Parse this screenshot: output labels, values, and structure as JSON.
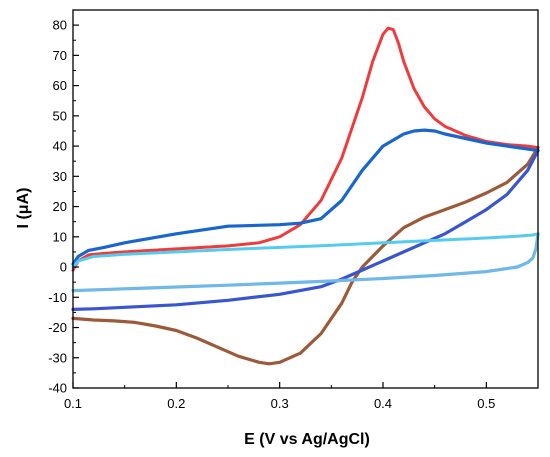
{
  "chart_data": {
    "type": "line",
    "xlabel": "E (V vs Ag/AgCl)",
    "ylabel": "I (μA)",
    "xlim": [
      0.1,
      0.55
    ],
    "ylim": [
      -40,
      85
    ],
    "xticks": [
      0.1,
      0.2,
      0.3,
      0.4,
      0.5
    ],
    "yticks": [
      -40,
      -30,
      -20,
      -10,
      0,
      10,
      20,
      30,
      40,
      50,
      60,
      70,
      80
    ],
    "grid": false,
    "legend": "none",
    "series": [
      {
        "color": "#ee3b3b",
        "style": "dotted",
        "x": [
          0.1,
          0.105,
          0.115,
          0.13,
          0.15,
          0.2,
          0.25,
          0.28,
          0.3,
          0.32,
          0.34,
          0.36,
          0.38,
          0.39,
          0.4,
          0.405,
          0.41,
          0.415,
          0.42,
          0.43,
          0.44,
          0.45,
          0.46,
          0.48,
          0.5,
          0.52,
          0.54,
          0.55
        ],
        "y": [
          -1,
          2,
          4,
          4.5,
          5,
          6,
          7,
          8,
          10,
          14,
          22,
          36,
          56,
          68,
          77,
          79,
          78.5,
          74,
          68,
          59,
          53,
          49,
          46.5,
          43.5,
          41.5,
          40.5,
          40,
          39.5
        ]
      },
      {
        "color": "#9b5a3a",
        "style": "solid",
        "x": [
          0.55,
          0.54,
          0.52,
          0.5,
          0.48,
          0.46,
          0.44,
          0.42,
          0.4,
          0.38,
          0.37,
          0.36,
          0.34,
          0.32,
          0.3,
          0.29,
          0.28,
          0.26,
          0.24,
          0.22,
          0.2,
          0.18,
          0.16,
          0.14,
          0.12,
          0.1
        ],
        "y": [
          39.5,
          34,
          28,
          24.5,
          21.5,
          19,
          16.5,
          13,
          7,
          0,
          -5,
          -12,
          -22,
          -28.5,
          -31.5,
          -32,
          -31.5,
          -29.5,
          -26.5,
          -23.5,
          -21,
          -19.5,
          -18.3,
          -17.8,
          -17.5,
          -17
        ]
      },
      {
        "color": "#1a66cc",
        "style": "solid",
        "x": [
          0.1,
          0.105,
          0.115,
          0.13,
          0.15,
          0.2,
          0.25,
          0.3,
          0.32,
          0.34,
          0.36,
          0.38,
          0.4,
          0.42,
          0.43,
          0.44,
          0.45,
          0.46,
          0.48,
          0.5,
          0.52,
          0.54,
          0.55
        ],
        "y": [
          1,
          3.5,
          5.5,
          6.5,
          8,
          11,
          13.5,
          14,
          14.5,
          16,
          22,
          32,
          40,
          44,
          45,
          45.3,
          45,
          44,
          42.5,
          41,
          40,
          39,
          38.5
        ]
      },
      {
        "color": "#3a55d0",
        "style": "solid",
        "x": [
          0.55,
          0.54,
          0.52,
          0.5,
          0.48,
          0.46,
          0.44,
          0.42,
          0.4,
          0.38,
          0.36,
          0.34,
          0.3,
          0.25,
          0.2,
          0.15,
          0.12,
          0.1
        ],
        "y": [
          38.5,
          32,
          24,
          19,
          15,
          11,
          8,
          5,
          2,
          -1,
          -4,
          -6.5,
          -9,
          -11,
          -12.5,
          -13.3,
          -13.8,
          -14
        ]
      },
      {
        "color": "#55ccee",
        "style": "dotted",
        "x": [
          0.1,
          0.105,
          0.12,
          0.15,
          0.2,
          0.25,
          0.3,
          0.35,
          0.4,
          0.45,
          0.5,
          0.53,
          0.545,
          0.55
        ],
        "y": [
          0,
          2,
          3.5,
          4.2,
          5,
          5.8,
          6.5,
          7.2,
          8,
          8.8,
          9.6,
          10.2,
          10.6,
          11
        ]
      },
      {
        "color": "#6fb8e8",
        "style": "solid",
        "x": [
          0.55,
          0.548,
          0.545,
          0.54,
          0.53,
          0.5,
          0.45,
          0.4,
          0.35,
          0.3,
          0.25,
          0.2,
          0.15,
          0.1
        ],
        "y": [
          11,
          6,
          3,
          1.5,
          0,
          -1.5,
          -2.8,
          -3.8,
          -4.6,
          -5.3,
          -6,
          -6.6,
          -7.2,
          -7.8
        ]
      }
    ]
  }
}
